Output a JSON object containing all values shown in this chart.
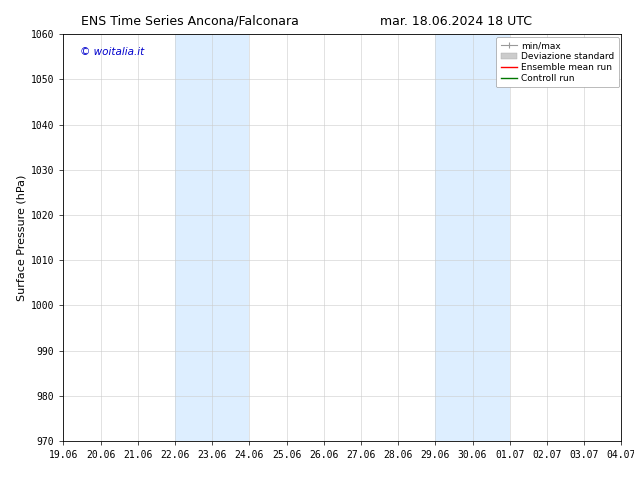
{
  "title_left": "ENS Time Series Ancona/Falconara",
  "title_right": "mar. 18.06.2024 18 UTC",
  "ylabel": "Surface Pressure (hPa)",
  "ylim": [
    970,
    1060
  ],
  "yticks": [
    970,
    980,
    990,
    1000,
    1010,
    1020,
    1030,
    1040,
    1050,
    1060
  ],
  "xtick_labels": [
    "19.06",
    "20.06",
    "21.06",
    "22.06",
    "23.06",
    "24.06",
    "25.06",
    "26.06",
    "27.06",
    "28.06",
    "29.06",
    "30.06",
    "01.07",
    "02.07",
    "03.07",
    "04.07"
  ],
  "xtick_positions": [
    0,
    1,
    2,
    3,
    4,
    5,
    6,
    7,
    8,
    9,
    10,
    11,
    12,
    13,
    14,
    15
  ],
  "shaded_regions": [
    {
      "xstart": 3,
      "xend": 5,
      "color": "#ddeeff"
    },
    {
      "xstart": 10,
      "xend": 12,
      "color": "#ddeeff"
    }
  ],
  "watermark_text": "© woitalia.it",
  "watermark_color": "#0000cc",
  "legend_entries": [
    {
      "label": "min/max",
      "color": "#aaaaaa",
      "lw": 1.0
    },
    {
      "label": "Deviazione standard",
      "color": "#cccccc",
      "lw": 5
    },
    {
      "label": "Ensemble mean run",
      "color": "#ff0000",
      "lw": 1.0
    },
    {
      "label": "Controll run",
      "color": "#007700",
      "lw": 1.0
    }
  ],
  "bg_color": "#ffffff",
  "spine_color": "#000000",
  "grid_color": "#cccccc",
  "title_fontsize": 9,
  "ylabel_fontsize": 8,
  "tick_fontsize": 7,
  "watermark_fontsize": 7.5,
  "legend_fontsize": 6.5
}
